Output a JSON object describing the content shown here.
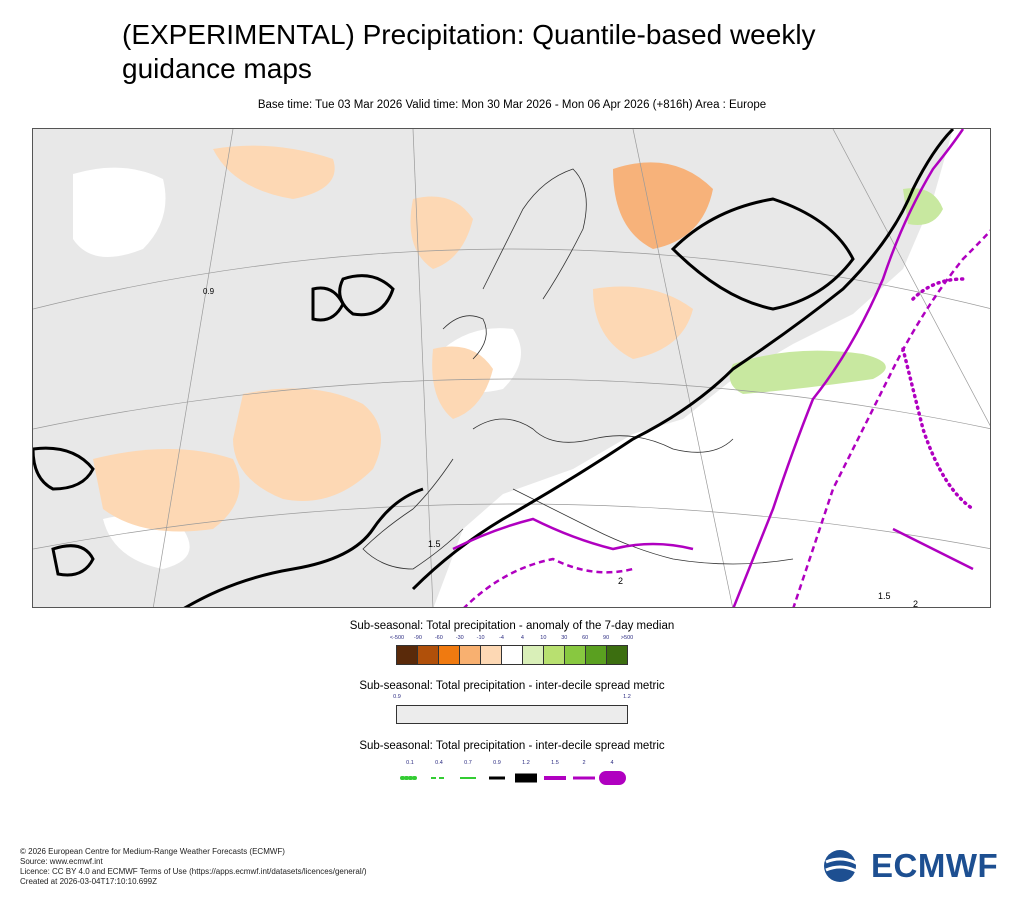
{
  "header": {
    "title_line1": "(EXPERIMENTAL) Precipitation: Quantile-based weekly",
    "title_line2": "guidance maps",
    "subtitle": "Base time: Tue 03 Mar 2026 Valid time: Mon 30 Mar 2026 - Mon 06 Apr 2026 (+816h) Area : Europe"
  },
  "map": {
    "region": "Europe",
    "contour_labels": [
      "0.9",
      "1.5",
      "2"
    ],
    "colors": {
      "background_spread": "#e8e8e8",
      "land_neutral": "#ffffff",
      "dry_anomaly": "#fdd8b4",
      "dry_anomaly_strong": "#f7b27a",
      "wet_anomaly": "#c8e8a0",
      "contour_09": "#000000",
      "contour_15": "#b000c0"
    }
  },
  "legend_anomaly": {
    "title": "Sub-seasonal: Total precipitation - anomaly of the 7-day median",
    "ticks": [
      "<-500",
      "-90",
      "-60",
      "-30",
      "-10",
      "-4",
      "4",
      "10",
      "30",
      "60",
      "90",
      ">500"
    ],
    "colors": [
      "#5a2a0a",
      "#b0500a",
      "#f07a10",
      "#f8b070",
      "#fdd8b4",
      "#ffffff",
      "#d9efb8",
      "#b8e070",
      "#88c840",
      "#5aa020",
      "#3c6e10"
    ]
  },
  "legend_spread": {
    "title": "Sub-seasonal: Total precipitation - inter-decile spread metric",
    "ticks": [
      "0.9",
      "1.2"
    ],
    "color": "#ececec"
  },
  "legend_lines": {
    "title": "Sub-seasonal: Total precipitation - inter-decile spread metric",
    "ticks": [
      "0.1",
      "0.4",
      "0.7",
      "0.9",
      "1.2",
      "1.5",
      "2",
      "4"
    ]
  },
  "footer": {
    "line1": "© 2026 European Centre for Medium-Range Weather Forecasts (ECMWF)",
    "line2": "Source: www.ecmwf.int",
    "line3": "Licence: CC BY 4.0 and ECMWF Terms of Use (https://apps.ecmwf.int/datasets/licences/general/)",
    "line4": "Created at 2026-03-04T17:10:10.699Z"
  },
  "logo": {
    "text": "ECMWF",
    "color": "#1d4f91"
  }
}
